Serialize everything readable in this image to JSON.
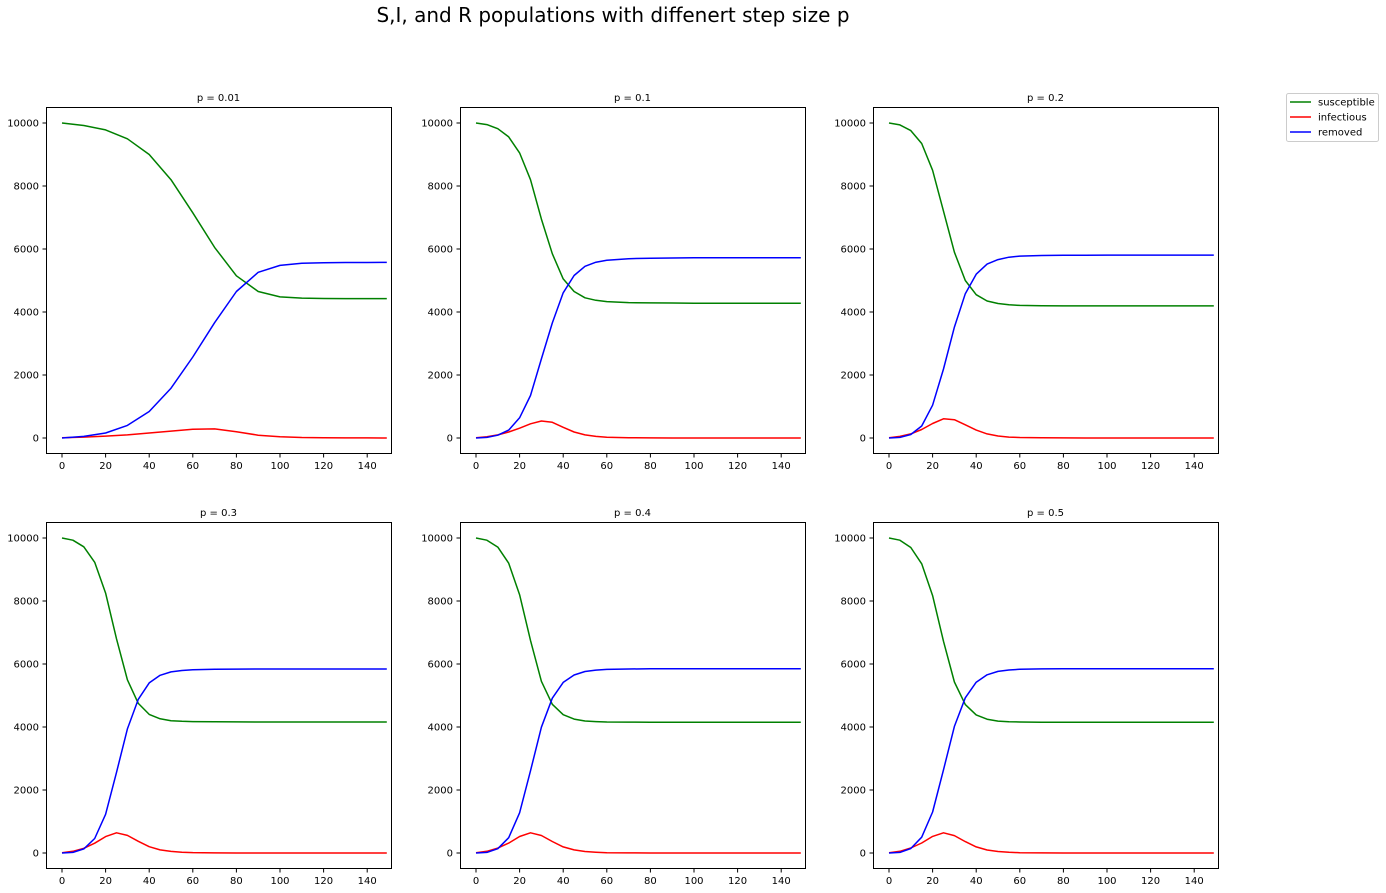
{
  "figure": {
    "title": "S,I, and R populations with diffenert step size p"
  },
  "legend": {
    "placement": "upper-right, outside plots",
    "entries": [
      {
        "label": "susceptible",
        "color": "#008000"
      },
      {
        "label": "infectious",
        "color": "#ff0000"
      },
      {
        "label": "removed",
        "color": "#0000ff"
      }
    ]
  },
  "chart_data": [
    {
      "type": "line",
      "title": "p = 0.01",
      "xlim": [
        0,
        150
      ],
      "ylim": [
        0,
        10000
      ],
      "xticks": [
        0,
        20,
        40,
        60,
        80,
        100,
        120,
        140
      ],
      "yticks": [
        0,
        2000,
        4000,
        6000,
        8000,
        10000
      ],
      "xlabel": "",
      "ylabel": "",
      "grid": false,
      "x": [
        0,
        10,
        20,
        30,
        40,
        50,
        60,
        70,
        80,
        90,
        100,
        110,
        120,
        130,
        140,
        149
      ],
      "series": [
        {
          "name": "susceptible",
          "color": "#008000",
          "values": [
            10000,
            9920,
            9780,
            9500,
            9000,
            8200,
            7150,
            6050,
            5150,
            4650,
            4480,
            4440,
            4430,
            4425,
            4425,
            4425
          ]
        },
        {
          "name": "infectious",
          "color": "#ff0000",
          "values": [
            10,
            30,
            60,
            100,
            160,
            220,
            280,
            290,
            200,
            90,
            40,
            15,
            6,
            3,
            2,
            1
          ]
        },
        {
          "name": "removed",
          "color": "#0000ff",
          "values": [
            0,
            50,
            160,
            400,
            840,
            1580,
            2570,
            3660,
            4650,
            5260,
            5480,
            5545,
            5565,
            5570,
            5573,
            5574
          ]
        }
      ]
    },
    {
      "type": "line",
      "title": "p = 0.1",
      "xlim": [
        0,
        150
      ],
      "ylim": [
        0,
        10000
      ],
      "xticks": [
        0,
        20,
        40,
        60,
        80,
        100,
        120,
        140
      ],
      "yticks": [
        0,
        2000,
        4000,
        6000,
        8000,
        10000
      ],
      "xlabel": "",
      "ylabel": "",
      "grid": false,
      "x": [
        0,
        5,
        10,
        15,
        20,
        25,
        30,
        35,
        40,
        45,
        50,
        55,
        60,
        70,
        80,
        90,
        100,
        120,
        149
      ],
      "series": [
        {
          "name": "susceptible",
          "color": "#008000",
          "values": [
            10000,
            9950,
            9820,
            9560,
            9050,
            8200,
            6950,
            5850,
            5050,
            4650,
            4450,
            4370,
            4330,
            4300,
            4290,
            4285,
            4280,
            4280,
            4280
          ]
        },
        {
          "name": "infectious",
          "color": "#ff0000",
          "values": [
            10,
            40,
            100,
            190,
            310,
            450,
            540,
            500,
            340,
            190,
            100,
            50,
            25,
            8,
            3,
            1,
            0,
            0,
            0
          ]
        },
        {
          "name": "removed",
          "color": "#0000ff",
          "values": [
            0,
            20,
            90,
            250,
            640,
            1350,
            2510,
            3650,
            4610,
            5160,
            5450,
            5580,
            5645,
            5692,
            5707,
            5714,
            5720,
            5720,
            5720
          ]
        }
      ]
    },
    {
      "type": "line",
      "title": "p = 0.2",
      "xlim": [
        0,
        150
      ],
      "ylim": [
        0,
        10000
      ],
      "xticks": [
        0,
        20,
        40,
        60,
        80,
        100,
        120,
        140
      ],
      "yticks": [
        0,
        2000,
        4000,
        6000,
        8000,
        10000
      ],
      "xlabel": "",
      "ylabel": "",
      "grid": false,
      "x": [
        0,
        5,
        10,
        15,
        20,
        25,
        30,
        35,
        40,
        45,
        50,
        55,
        60,
        70,
        80,
        90,
        100,
        120,
        149
      ],
      "series": [
        {
          "name": "susceptible",
          "color": "#008000",
          "values": [
            10000,
            9940,
            9760,
            9350,
            8500,
            7200,
            5900,
            5000,
            4550,
            4350,
            4270,
            4230,
            4210,
            4200,
            4195,
            4195,
            4195,
            4195,
            4195
          ]
        },
        {
          "name": "infectious",
          "color": "#ff0000",
          "values": [
            10,
            50,
            130,
            270,
            460,
            610,
            580,
            420,
            250,
            130,
            65,
            30,
            15,
            5,
            2,
            1,
            0,
            0,
            0
          ]
        },
        {
          "name": "removed",
          "color": "#0000ff",
          "values": [
            0,
            20,
            110,
            380,
            1040,
            2190,
            3520,
            4580,
            5200,
            5520,
            5665,
            5740,
            5775,
            5795,
            5803,
            5804,
            5805,
            5805,
            5805
          ]
        }
      ]
    },
    {
      "type": "line",
      "title": "p = 0.3",
      "xlim": [
        0,
        150
      ],
      "ylim": [
        0,
        10000
      ],
      "xticks": [
        0,
        20,
        40,
        60,
        80,
        100,
        120,
        140
      ],
      "yticks": [
        0,
        2000,
        4000,
        6000,
        8000,
        10000
      ],
      "xlabel": "",
      "ylabel": "",
      "grid": false,
      "x": [
        0,
        5,
        10,
        15,
        20,
        25,
        30,
        35,
        40,
        45,
        50,
        55,
        60,
        70,
        80,
        90,
        100,
        120,
        149
      ],
      "series": [
        {
          "name": "susceptible",
          "color": "#008000",
          "values": [
            10000,
            9930,
            9720,
            9230,
            8250,
            6800,
            5500,
            4750,
            4400,
            4260,
            4200,
            4180,
            4170,
            4165,
            4162,
            4160,
            4160,
            4160,
            4160
          ]
        },
        {
          "name": "infectious",
          "color": "#ff0000",
          "values": [
            10,
            55,
            150,
            310,
            520,
            640,
            560,
            370,
            200,
            100,
            50,
            25,
            12,
            4,
            1,
            0,
            0,
            0,
            0
          ]
        },
        {
          "name": "removed",
          "color": "#0000ff",
          "values": [
            0,
            20,
            130,
            460,
            1230,
            2560,
            3940,
            4880,
            5400,
            5640,
            5750,
            5795,
            5818,
            5831,
            5837,
            5840,
            5840,
            5840,
            5840
          ]
        }
      ]
    },
    {
      "type": "line",
      "title": "p = 0.4",
      "xlim": [
        0,
        150
      ],
      "ylim": [
        0,
        10000
      ],
      "xticks": [
        0,
        20,
        40,
        60,
        80,
        100,
        120,
        140
      ],
      "yticks": [
        0,
        2000,
        4000,
        6000,
        8000,
        10000
      ],
      "xlabel": "",
      "ylabel": "",
      "grid": false,
      "x": [
        0,
        5,
        10,
        15,
        20,
        25,
        30,
        35,
        40,
        45,
        50,
        55,
        60,
        70,
        80,
        90,
        100,
        120,
        149
      ],
      "series": [
        {
          "name": "susceptible",
          "color": "#008000",
          "values": [
            10000,
            9930,
            9710,
            9200,
            8200,
            6750,
            5450,
            4720,
            4390,
            4250,
            4190,
            4170,
            4160,
            4155,
            4152,
            4150,
            4150,
            4150,
            4150
          ]
        },
        {
          "name": "infectious",
          "color": "#ff0000",
          "values": [
            10,
            55,
            155,
            315,
            525,
            640,
            555,
            365,
            195,
            98,
            48,
            24,
            11,
            4,
            1,
            0,
            0,
            0,
            0
          ]
        },
        {
          "name": "removed",
          "color": "#0000ff",
          "values": [
            0,
            20,
            135,
            485,
            1275,
            2610,
            3995,
            4915,
            5415,
            5652,
            5762,
            5806,
            5829,
            5841,
            5847,
            5850,
            5850,
            5850,
            5850
          ]
        }
      ]
    },
    {
      "type": "line",
      "title": "p = 0.5",
      "xlim": [
        0,
        150
      ],
      "ylim": [
        0,
        10000
      ],
      "xticks": [
        0,
        20,
        40,
        60,
        80,
        100,
        120,
        140
      ],
      "yticks": [
        0,
        2000,
        4000,
        6000,
        8000,
        10000
      ],
      "xlabel": "",
      "ylabel": "",
      "grid": false,
      "x": [
        0,
        5,
        10,
        15,
        20,
        25,
        30,
        35,
        40,
        45,
        50,
        55,
        60,
        70,
        80,
        90,
        100,
        120,
        149
      ],
      "series": [
        {
          "name": "susceptible",
          "color": "#008000",
          "values": [
            10000,
            9930,
            9700,
            9180,
            8170,
            6720,
            5430,
            4710,
            4385,
            4248,
            4188,
            4168,
            4158,
            4152,
            4150,
            4148,
            4148,
            4148,
            4148
          ]
        },
        {
          "name": "infectious",
          "color": "#ff0000",
          "values": [
            10,
            55,
            158,
            318,
            528,
            640,
            552,
            362,
            193,
            96,
            47,
            23,
            11,
            4,
            1,
            0,
            0,
            0,
            0
          ]
        },
        {
          "name": "removed",
          "color": "#0000ff",
          "values": [
            0,
            20,
            142,
            502,
            1302,
            2640,
            4018,
            4928,
            5422,
            5656,
            5765,
            5809,
            5831,
            5844,
            5849,
            5852,
            5852,
            5852,
            5852
          ]
        }
      ]
    }
  ]
}
